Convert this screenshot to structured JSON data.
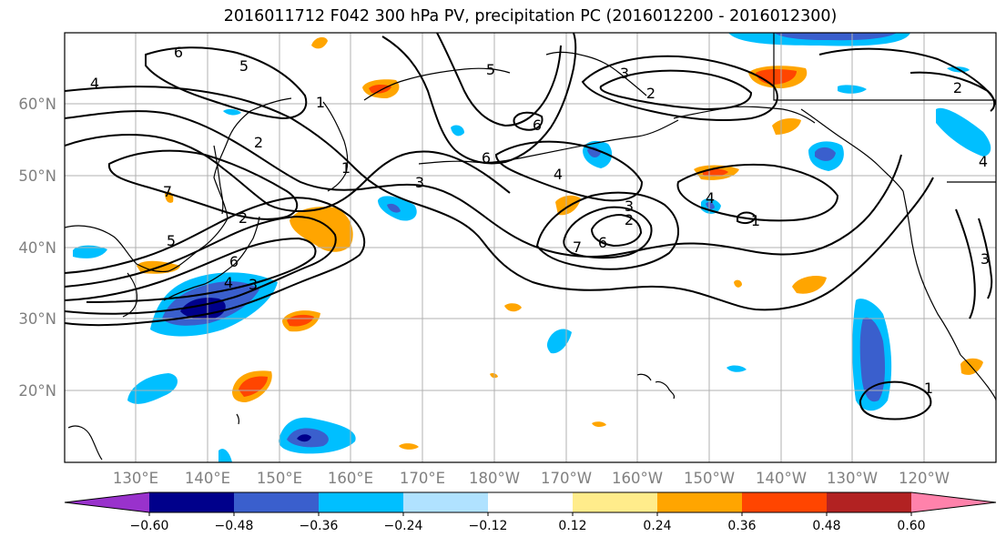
{
  "title": "2016011712 F042 300 hPa PV, precipitation PC (2016012200 - 2016012300)",
  "lat_labels": [
    "60°N",
    "50°N",
    "40°N",
    "30°N",
    "20°N"
  ],
  "lon_labels": [
    "130°E",
    "140°E",
    "150°E",
    "160°E",
    "170°E",
    "180°W",
    "170°W",
    "160°W",
    "150°W",
    "140°W",
    "130°W",
    "120°W"
  ],
  "colorbar": {
    "tick_labels": [
      "−0.60",
      "−0.48",
      "−0.36",
      "−0.24",
      "−0.12",
      "0.12",
      "0.24",
      "0.36",
      "0.48",
      "0.60"
    ],
    "colors": [
      "#9932cc",
      "#00008b",
      "#3a5fcd",
      "#00bfff",
      "#b0e2ff",
      "#ffffff",
      "#ffec8b",
      "#ffa500",
      "#ff4500",
      "#b22222",
      "#ff82ab"
    ]
  },
  "contour_labels": [
    "6",
    "5",
    "4",
    "2",
    "1",
    "1",
    "3",
    "5",
    "6",
    "4",
    "2",
    "3",
    "7",
    "6",
    "5",
    "6",
    "4",
    "3",
    "2",
    "6",
    "4",
    "3",
    "1",
    "7",
    "2",
    "2",
    "3",
    "4",
    "1"
  ]
}
